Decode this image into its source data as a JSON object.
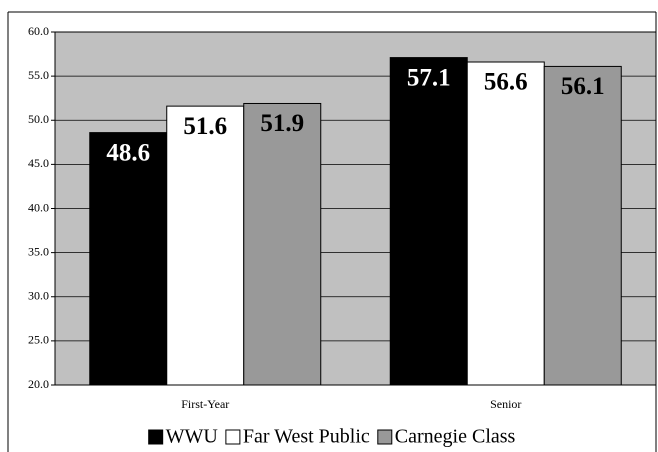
{
  "chart_data": {
    "type": "bar",
    "categories": [
      "First-Year",
      "Senior"
    ],
    "series": [
      {
        "name": "WWU",
        "color": "#000000",
        "values": [
          48.6,
          57.1
        ]
      },
      {
        "name": "Far West Public",
        "color": "#ffffff",
        "values": [
          51.6,
          56.6
        ]
      },
      {
        "name": "Carnegie Class",
        "color": "#999999",
        "values": [
          51.9,
          56.1
        ]
      }
    ],
    "ylim": [
      20,
      60
    ],
    "yticks": [
      {
        "value": 20,
        "label": "20.0"
      },
      {
        "value": 25,
        "label": "25.0"
      },
      {
        "value": 30,
        "label": "30.0"
      },
      {
        "value": 35,
        "label": "35.0"
      },
      {
        "value": 40,
        "label": "40.0"
      },
      {
        "value": 45,
        "label": "45.0"
      },
      {
        "value": 50,
        "label": "50.0"
      },
      {
        "value": 55,
        "label": "55.0"
      },
      {
        "value": 60,
        "label": "60.0"
      }
    ],
    "grid": true,
    "plot_background": "#c0c0c0"
  }
}
